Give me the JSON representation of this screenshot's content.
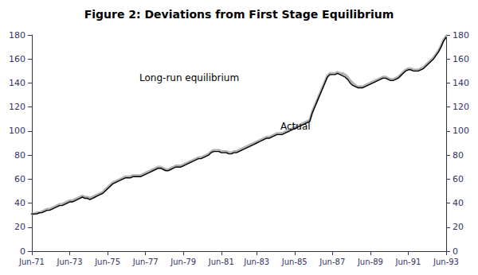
{
  "chart_data": {
    "type": "line",
    "title": "Figure 2: Deviations from First Stage Equilibrium",
    "categories": [
      "Jun-71",
      null,
      null,
      null,
      null,
      null,
      null,
      null,
      null,
      null,
      null,
      null,
      null,
      null,
      null,
      "Jun-73",
      null,
      null,
      null,
      null,
      null,
      null,
      null,
      null,
      null,
      null,
      null,
      null,
      null,
      null,
      "Jun-75",
      null,
      null,
      null,
      null,
      null,
      null,
      null,
      null,
      null,
      null,
      null,
      null,
      null,
      null,
      "Jun-77",
      null,
      null,
      null,
      null,
      null,
      null,
      null,
      null,
      null,
      null,
      null,
      null,
      null,
      null,
      "Jun-79",
      null,
      null,
      null,
      null,
      null,
      null,
      null,
      null,
      null,
      null,
      null,
      null,
      null,
      null,
      "Jun-81",
      null,
      null,
      null,
      null,
      null,
      null,
      null,
      null,
      null,
      null,
      null,
      null,
      null,
      "Jun-83",
      null,
      null,
      null,
      null,
      null,
      null,
      null,
      null,
      null,
      null,
      null,
      null,
      null,
      null,
      "Jun-85",
      null,
      null,
      null,
      null,
      null,
      null,
      null,
      null,
      null,
      null,
      null,
      null,
      null,
      null,
      "Jun-87",
      null,
      null,
      null,
      null,
      null,
      null,
      null,
      null,
      null,
      null,
      null,
      null,
      null,
      null,
      "Jun-89",
      null,
      null,
      null,
      null,
      null,
      null,
      null,
      null,
      null,
      null,
      null,
      null,
      null,
      null,
      "Jun-91",
      null,
      null,
      null,
      null,
      null,
      null,
      null,
      null,
      null,
      null,
      null,
      null,
      null,
      null,
      "Jun-93"
    ],
    "series": [
      {
        "color": "#b0b0b0",
        "values": [
          31,
          31,
          32,
          32,
          33,
          34,
          35,
          35,
          36,
          37,
          38,
          39,
          39,
          40,
          41,
          42,
          42,
          43,
          44,
          45,
          46,
          45,
          45,
          44,
          45,
          46,
          47,
          48,
          49,
          51,
          53,
          55,
          57,
          58,
          59,
          60,
          61,
          62,
          62,
          62,
          63,
          63,
          63,
          63,
          64,
          65,
          66,
          67,
          68,
          69,
          70,
          70,
          69,
          68,
          68,
          69,
          70,
          71,
          71,
          71,
          72,
          73,
          74,
          75,
          76,
          77,
          78,
          78,
          79,
          80,
          81,
          83,
          84,
          84,
          84,
          83,
          83,
          83,
          82,
          82,
          83,
          83,
          84,
          85,
          86,
          87,
          88,
          89,
          90,
          91,
          92,
          93,
          94,
          95,
          95,
          96,
          97,
          98,
          98,
          98,
          99,
          100,
          101,
          102,
          103,
          104,
          105,
          106,
          107,
          108,
          109,
          116,
          121,
          126,
          131,
          136,
          141,
          146,
          148,
          148,
          148,
          149,
          148,
          148,
          147,
          145,
          142,
          140,
          138,
          137,
          137,
          137,
          138,
          139,
          140,
          141,
          142,
          143,
          144,
          145,
          145,
          144,
          143,
          143,
          144,
          145,
          147,
          149,
          151,
          152,
          152,
          151,
          151,
          151,
          152,
          153,
          155,
          157,
          159,
          161,
          164,
          167,
          171,
          176,
          179
        ]
      },
      {
        "color": "#000000",
        "values": [
          31,
          31,
          31,
          32,
          32,
          33,
          34,
          34,
          35,
          36,
          37,
          38,
          38,
          39,
          40,
          41,
          41,
          42,
          43,
          44,
          45,
          44,
          44,
          43,
          44,
          45,
          46,
          47,
          48,
          50,
          52,
          54,
          56,
          57,
          58,
          59,
          60,
          61,
          61,
          61,
          62,
          62,
          62,
          62,
          63,
          64,
          65,
          66,
          67,
          68,
          69,
          69,
          68,
          67,
          67,
          68,
          69,
          70,
          70,
          70,
          71,
          72,
          73,
          74,
          75,
          76,
          77,
          77,
          78,
          79,
          80,
          82,
          83,
          83,
          83,
          82,
          82,
          82,
          81,
          81,
          82,
          82,
          83,
          84,
          85,
          86,
          87,
          88,
          89,
          90,
          91,
          92,
          93,
          94,
          94,
          95,
          96,
          97,
          97,
          97,
          98,
          99,
          100,
          101,
          102,
          103,
          104,
          105,
          106,
          107,
          108,
          115,
          120,
          125,
          130,
          135,
          140,
          145,
          147,
          147,
          147,
          148,
          147,
          146,
          145,
          143,
          140,
          138,
          137,
          136,
          136,
          136,
          137,
          138,
          139,
          140,
          141,
          142,
          143,
          144,
          144,
          143,
          142,
          142,
          143,
          144,
          146,
          148,
          150,
          151,
          151,
          150,
          150,
          150,
          151,
          152,
          154,
          156,
          158,
          160,
          163,
          166,
          170,
          175,
          178
        ]
      }
    ],
    "ylim": [
      0,
      180
    ],
    "yticks": [
      0,
      20,
      40,
      60,
      80,
      100,
      120,
      140,
      160,
      180
    ],
    "y2lim": [
      0,
      180
    ],
    "y2ticks": [
      0,
      20,
      40,
      60,
      80,
      100,
      120,
      140,
      160,
      180
    ],
    "annotations": [
      "Long-run equilibrium",
      "Actual"
    ],
    "grid": false
  }
}
